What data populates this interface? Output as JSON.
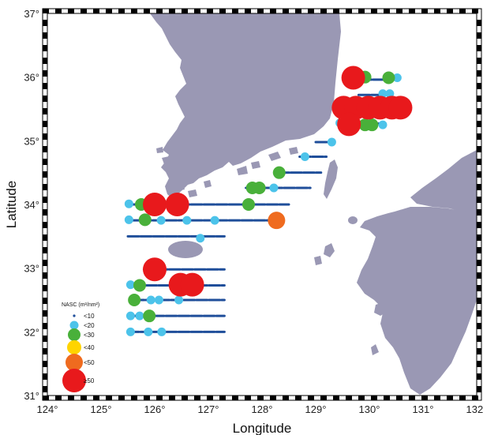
{
  "map": {
    "xlabel": "Longitude",
    "ylabel": "Latitude",
    "lon_range": [
      124,
      132
    ],
    "lat_range": [
      31,
      37
    ],
    "lon_ticks": [
      "124°",
      "125°",
      "126°",
      "127°",
      "128°",
      "129°",
      "130°",
      "131°",
      "132°"
    ],
    "lat_ticks": [
      "31°",
      "32°",
      "33°",
      "34°",
      "35°",
      "36°",
      "37°"
    ],
    "colors": {
      "land": "#9a98b4",
      "transect": "#1f4e9a",
      "lt10": "#1f4e9a",
      "lt20": "#4cc3ea",
      "lt30": "#49b03a",
      "lt40": "#ffd400",
      "lt50": "#ef6b1f",
      "ge50": "#e8191c"
    }
  },
  "legend": {
    "title": "NASC (m²/nm²)",
    "items": [
      {
        "label": "<10",
        "class": "lt10"
      },
      {
        "label": "<20",
        "class": "lt20"
      },
      {
        "label": "<30",
        "class": "lt30"
      },
      {
        "label": "<40",
        "class": "lt40"
      },
      {
        "label": "<50",
        "class": "lt50"
      },
      {
        "label": "≥50",
        "class": "ge50"
      }
    ]
  },
  "chart_data": {
    "type": "scatter",
    "xlabel": "Longitude",
    "ylabel": "Latitude",
    "xlim": [
      124,
      132
    ],
    "ylim": [
      31,
      37
    ],
    "transects": [
      {
        "lat": 35.96,
        "lon": [
          129.6,
          130.5
        ]
      },
      {
        "lat": 35.72,
        "lon": [
          129.8,
          130.4
        ]
      },
      {
        "lat": 35.52,
        "lon": [
          129.5,
          130.5
        ]
      },
      {
        "lat": 35.27,
        "lon": [
          129.4,
          130.3
        ]
      },
      {
        "lat": 34.98,
        "lon": [
          129.0,
          129.35
        ]
      },
      {
        "lat": 34.75,
        "lon": [
          128.7,
          129.2
        ]
      },
      {
        "lat": 34.5,
        "lon": [
          128.3,
          129.1
        ]
      },
      {
        "lat": 34.26,
        "lon": [
          127.7,
          128.9
        ]
      },
      {
        "lat": 34.0,
        "lon": [
          125.5,
          128.5
        ]
      },
      {
        "lat": 33.75,
        "lon": [
          125.5,
          128.4
        ]
      },
      {
        "lat": 33.5,
        "lon": [
          125.5,
          127.3
        ]
      },
      {
        "lat": 32.98,
        "lon": [
          125.8,
          127.3
        ]
      },
      {
        "lat": 32.73,
        "lon": [
          125.6,
          127.3
        ]
      },
      {
        "lat": 32.5,
        "lon": [
          125.6,
          127.3
        ]
      },
      {
        "lat": 32.25,
        "lon": [
          125.5,
          127.3
        ]
      },
      {
        "lat": 32.0,
        "lon": [
          125.5,
          127.3
        ]
      }
    ],
    "points": [
      {
        "lon": 129.7,
        "lat": 35.99,
        "class": "ge50"
      },
      {
        "lon": 129.92,
        "lat": 36.0,
        "class": "lt30"
      },
      {
        "lon": 130.36,
        "lat": 35.99,
        "class": "lt30"
      },
      {
        "lon": 130.52,
        "lat": 35.99,
        "class": "lt20"
      },
      {
        "lon": 130.25,
        "lat": 35.74,
        "class": "lt20"
      },
      {
        "lon": 130.38,
        "lat": 35.74,
        "class": "lt20"
      },
      {
        "lon": 129.52,
        "lat": 35.52,
        "class": "ge50"
      },
      {
        "lon": 129.75,
        "lat": 35.52,
        "class": "ge50"
      },
      {
        "lon": 129.98,
        "lat": 35.52,
        "class": "ge50"
      },
      {
        "lon": 130.2,
        "lat": 35.52,
        "class": "ge50"
      },
      {
        "lon": 130.42,
        "lat": 35.52,
        "class": "ge50"
      },
      {
        "lon": 130.58,
        "lat": 35.52,
        "class": "ge50"
      },
      {
        "lon": 129.45,
        "lat": 35.28,
        "class": "lt20"
      },
      {
        "lon": 129.62,
        "lat": 35.26,
        "class": "ge50"
      },
      {
        "lon": 129.92,
        "lat": 35.25,
        "class": "lt30"
      },
      {
        "lon": 130.05,
        "lat": 35.25,
        "class": "lt30"
      },
      {
        "lon": 130.25,
        "lat": 35.25,
        "class": "lt20"
      },
      {
        "lon": 129.3,
        "lat": 34.98,
        "class": "lt20"
      },
      {
        "lon": 128.8,
        "lat": 34.75,
        "class": "lt20"
      },
      {
        "lon": 128.32,
        "lat": 34.5,
        "class": "lt30"
      },
      {
        "lon": 127.82,
        "lat": 34.26,
        "class": "lt30"
      },
      {
        "lon": 127.95,
        "lat": 34.26,
        "class": "lt30"
      },
      {
        "lon": 128.22,
        "lat": 34.26,
        "class": "lt20"
      },
      {
        "lon": 125.52,
        "lat": 34.01,
        "class": "lt20"
      },
      {
        "lon": 125.75,
        "lat": 34.0,
        "class": "lt30"
      },
      {
        "lon": 125.9,
        "lat": 34.0,
        "class": "lt30"
      },
      {
        "lon": 126.0,
        "lat": 34.0,
        "class": "ge50"
      },
      {
        "lon": 126.42,
        "lat": 34.0,
        "class": "ge50"
      },
      {
        "lon": 127.75,
        "lat": 34.0,
        "class": "lt30"
      },
      {
        "lon": 125.52,
        "lat": 33.76,
        "class": "lt20"
      },
      {
        "lon": 125.82,
        "lat": 33.76,
        "class": "lt30"
      },
      {
        "lon": 126.12,
        "lat": 33.75,
        "class": "lt20"
      },
      {
        "lon": 126.6,
        "lat": 33.75,
        "class": "lt20"
      },
      {
        "lon": 127.12,
        "lat": 33.75,
        "class": "lt20"
      },
      {
        "lon": 128.27,
        "lat": 33.75,
        "class": "lt50"
      },
      {
        "lon": 126.85,
        "lat": 33.47,
        "class": "lt20"
      },
      {
        "lon": 126.0,
        "lat": 32.98,
        "class": "ge50"
      },
      {
        "lon": 125.55,
        "lat": 32.74,
        "class": "lt20"
      },
      {
        "lon": 125.72,
        "lat": 32.73,
        "class": "lt30"
      },
      {
        "lon": 126.48,
        "lat": 32.74,
        "class": "ge50"
      },
      {
        "lon": 126.7,
        "lat": 32.74,
        "class": "ge50"
      },
      {
        "lon": 125.62,
        "lat": 32.5,
        "class": "lt30"
      },
      {
        "lon": 125.93,
        "lat": 32.5,
        "class": "lt20"
      },
      {
        "lon": 126.08,
        "lat": 32.5,
        "class": "lt20"
      },
      {
        "lon": 126.45,
        "lat": 32.5,
        "class": "lt20"
      },
      {
        "lon": 125.55,
        "lat": 32.25,
        "class": "lt20"
      },
      {
        "lon": 125.72,
        "lat": 32.25,
        "class": "lt20"
      },
      {
        "lon": 125.9,
        "lat": 32.25,
        "class": "lt30"
      },
      {
        "lon": 125.55,
        "lat": 32.0,
        "class": "lt20"
      },
      {
        "lon": 125.88,
        "lat": 32.0,
        "class": "lt20"
      },
      {
        "lon": 126.13,
        "lat": 32.0,
        "class": "lt20"
      }
    ]
  }
}
